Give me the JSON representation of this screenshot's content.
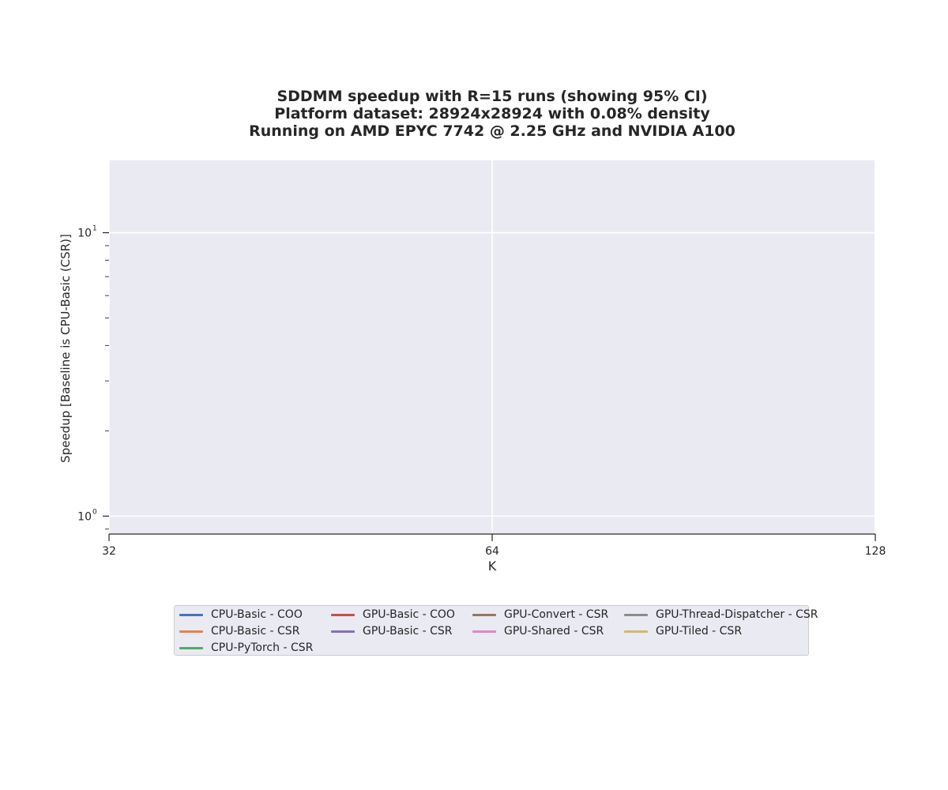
{
  "chart_data": {
    "type": "line",
    "title_lines": [
      "SDDMM speedup with R=15 runs (showing 95% CI)",
      "Platform dataset: 28924x28924 with 0.08% density",
      "Running on AMD EPYC 7742 @ 2.25 GHz and NVIDIA A100"
    ],
    "xlabel": "K",
    "ylabel": "Speedup [Baseline is CPU-Basic (CSR)]",
    "x_scale": "log2",
    "y_scale": "log10",
    "x_ticks": [
      32,
      64,
      128
    ],
    "x_tick_labels": [
      "32",
      "64",
      "128"
    ],
    "xlim": [
      32,
      128
    ],
    "ylim": [
      0.87,
      18
    ],
    "y_major_ticks": [
      {
        "value": 1,
        "base": "10",
        "exp": "0"
      },
      {
        "value": 10,
        "base": "10",
        "exp": "1"
      }
    ],
    "y_minor_ticks": [
      0.9,
      2,
      3,
      4,
      5,
      6,
      7,
      8,
      9
    ],
    "grid": true,
    "background": "#eaeaf2",
    "legend_position": "bottom-center",
    "series": [
      {
        "name": "CPU-Basic - COO",
        "color": "#4c72b0",
        "x": [],
        "y": []
      },
      {
        "name": "CPU-Basic - CSR",
        "color": "#dd8452",
        "x": [],
        "y": []
      },
      {
        "name": "CPU-PyTorch - CSR",
        "color": "#55a868",
        "x": [],
        "y": []
      },
      {
        "name": "GPU-Basic - COO",
        "color": "#c44e52",
        "x": [],
        "y": []
      },
      {
        "name": "GPU-Basic - CSR",
        "color": "#8172b3",
        "x": [],
        "y": []
      },
      {
        "name": "GPU-Convert - CSR",
        "color": "#937860",
        "x": [],
        "y": []
      },
      {
        "name": "GPU-Shared - CSR",
        "color": "#da8bc3",
        "x": [],
        "y": []
      },
      {
        "name": "GPU-Thread-Dispatcher - CSR",
        "color": "#8c8c8c",
        "x": [],
        "y": []
      },
      {
        "name": "GPU-Tiled - CSR",
        "color": "#ccb974",
        "x": [],
        "y": []
      }
    ]
  }
}
